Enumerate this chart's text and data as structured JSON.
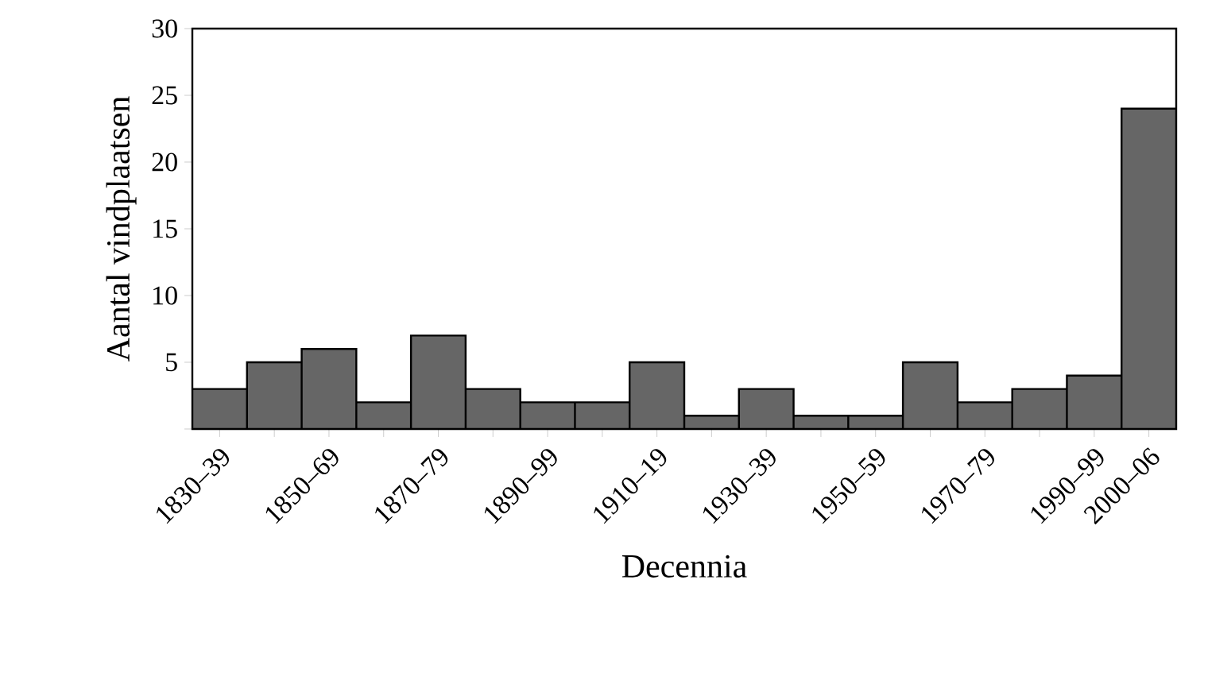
{
  "chart_data": {
    "type": "bar",
    "xlabel": "Decennia",
    "ylabel": "Aantal vindplaatsen",
    "categories": [
      "1830–39",
      null,
      "1850–69",
      null,
      "1870–79",
      null,
      "1890–99",
      null,
      "1910–19",
      null,
      "1930–39",
      null,
      "1950–59",
      null,
      "1970–79",
      null,
      "1990–99",
      "2000–06"
    ],
    "values": [
      3,
      5,
      6,
      2,
      7,
      3,
      2,
      2,
      5,
      1,
      3,
      1,
      1,
      5,
      2,
      3,
      4,
      24
    ],
    "color": "#666666",
    "ylim": [
      0,
      30
    ],
    "yticks": [
      {
        "value": 0,
        "label": null
      },
      5,
      10,
      15,
      20,
      25,
      30
    ],
    "grid": false
  }
}
